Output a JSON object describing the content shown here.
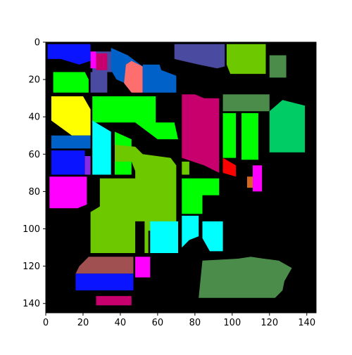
{
  "chart_data": {
    "type": "heatmap",
    "title": "",
    "xlabel": "",
    "ylabel": "",
    "xlim": [
      0,
      145
    ],
    "ylim": [
      145,
      0
    ],
    "x_ticks": [
      0,
      20,
      40,
      60,
      80,
      100,
      120,
      140
    ],
    "y_ticks": [
      0,
      20,
      40,
      60,
      80,
      100,
      120,
      140
    ],
    "background_color": "#000000",
    "grid": false,
    "legend": "none",
    "colors": {
      "blue": "#0a14ff",
      "magenta": "#ff00ff",
      "crimson": "#c8006e",
      "slate": "#4a4aa0",
      "salmon": "#ff6e6e",
      "steel_blue": "#0062c8",
      "olive_green": "#6ec800",
      "green": "#00ff00",
      "muted_green": "#4b8c4b",
      "mint": "#00cc66",
      "yellow": "#ffff00",
      "cyan": "#00ffff",
      "red": "#ff0000",
      "brown": "#a05050",
      "purple": "#8a2be2",
      "orange": "#d2691e"
    },
    "regions": [
      {
        "class": "blue",
        "polygon": [
          [
            1,
            1
          ],
          [
            24,
            1
          ],
          [
            24,
            10
          ],
          [
            18,
            12
          ],
          [
            8,
            9
          ],
          [
            1,
            9
          ]
        ]
      },
      {
        "class": "slate",
        "polygon": [
          [
            25,
            5
          ],
          [
            38,
            5
          ],
          [
            38,
            16
          ],
          [
            25,
            16
          ]
        ]
      },
      {
        "class": "magenta",
        "polygon": [
          [
            24,
            5
          ],
          [
            27,
            5
          ],
          [
            27,
            14
          ],
          [
            24,
            14
          ]
        ]
      },
      {
        "class": "crimson",
        "polygon": [
          [
            27,
            6
          ],
          [
            33,
            6
          ],
          [
            33,
            15
          ],
          [
            27,
            15
          ]
        ]
      },
      {
        "class": "slate",
        "polygon": [
          [
            24,
            16
          ],
          [
            33,
            16
          ],
          [
            33,
            27
          ],
          [
            24,
            27
          ]
        ]
      },
      {
        "class": "steel_blue",
        "polygon": [
          [
            35,
            3
          ],
          [
            44,
            7
          ],
          [
            52,
            13
          ],
          [
            52,
            24
          ],
          [
            45,
            23
          ],
          [
            38,
            20
          ],
          [
            35,
            15
          ]
        ]
      },
      {
        "class": "salmon",
        "polygon": [
          [
            43,
            12
          ],
          [
            46,
            10
          ],
          [
            52,
            13
          ],
          [
            52,
            27
          ],
          [
            46,
            27
          ],
          [
            42,
            22
          ]
        ]
      },
      {
        "class": "steel_blue",
        "polygon": [
          [
            52,
            12
          ],
          [
            61,
            12
          ],
          [
            62,
            15
          ],
          [
            70,
            18
          ],
          [
            70,
            27
          ],
          [
            52,
            27
          ]
        ]
      },
      {
        "class": "slate",
        "polygon": [
          [
            69,
            1
          ],
          [
            96,
            1
          ],
          [
            96,
            13
          ],
          [
            92,
            14
          ],
          [
            82,
            12
          ],
          [
            69,
            9
          ]
        ]
      },
      {
        "class": "olive_green",
        "polygon": [
          [
            97,
            1
          ],
          [
            118,
            1
          ],
          [
            118,
            17
          ],
          [
            99,
            17
          ],
          [
            97,
            12
          ]
        ]
      },
      {
        "class": "muted_green",
        "polygon": [
          [
            120,
            7
          ],
          [
            129,
            7
          ],
          [
            129,
            19
          ],
          [
            120,
            19
          ]
        ]
      },
      {
        "class": "green",
        "polygon": [
          [
            4,
            16
          ],
          [
            21,
            16
          ],
          [
            23,
            20
          ],
          [
            23,
            27
          ],
          [
            4,
            27
          ]
        ]
      },
      {
        "class": "yellow",
        "polygon": [
          [
            3,
            29
          ],
          [
            20,
            29
          ],
          [
            24,
            36
          ],
          [
            24,
            50
          ],
          [
            14,
            50
          ],
          [
            3,
            42
          ]
        ]
      },
      {
        "class": "steel_blue",
        "polygon": [
          [
            3,
            50
          ],
          [
            24,
            50
          ],
          [
            24,
            57
          ],
          [
            3,
            57
          ]
        ]
      },
      {
        "class": "blue",
        "polygon": [
          [
            3,
            58
          ],
          [
            21,
            58
          ],
          [
            21,
            71
          ],
          [
            3,
            71
          ]
        ]
      },
      {
        "class": "purple",
        "polygon": [
          [
            21,
            61
          ],
          [
            24,
            61
          ],
          [
            24,
            71
          ],
          [
            21,
            71
          ]
        ]
      },
      {
        "class": "magenta",
        "polygon": [
          [
            2,
            72
          ],
          [
            22,
            72
          ],
          [
            22,
            87
          ],
          [
            17,
            89
          ],
          [
            2,
            89
          ]
        ]
      },
      {
        "class": "green",
        "polygon": [
          [
            25,
            29
          ],
          [
            59,
            29
          ],
          [
            59,
            43
          ],
          [
            69,
            43
          ],
          [
            71,
            52
          ],
          [
            60,
            52
          ],
          [
            48,
            43
          ],
          [
            25,
            43
          ]
        ]
      },
      {
        "class": "cyan",
        "polygon": [
          [
            25,
            42
          ],
          [
            35,
            48
          ],
          [
            35,
            71
          ],
          [
            25,
            71
          ]
        ]
      },
      {
        "class": "green",
        "polygon": [
          [
            37,
            48
          ],
          [
            46,
            52
          ],
          [
            46,
            71
          ],
          [
            37,
            71
          ]
        ]
      },
      {
        "class": "olive_green",
        "polygon": [
          [
            37,
            55
          ],
          [
            48,
            56
          ],
          [
            52,
            60
          ],
          [
            67,
            62
          ],
          [
            70,
            66
          ],
          [
            70,
            97
          ],
          [
            65,
            101
          ],
          [
            55,
            101
          ],
          [
            55,
            113
          ],
          [
            53,
            113
          ],
          [
            53,
            96
          ],
          [
            48,
            96
          ],
          [
            48,
            113
          ],
          [
            24,
            113
          ],
          [
            24,
            91
          ],
          [
            29,
            88
          ],
          [
            29,
            73
          ],
          [
            48,
            73
          ],
          [
            48,
            69
          ],
          [
            46,
            64
          ],
          [
            37,
            64
          ]
        ]
      },
      {
        "class": "crimson",
        "polygon": [
          [
            73,
            28
          ],
          [
            80,
            28
          ],
          [
            85,
            30
          ],
          [
            93,
            30
          ],
          [
            93,
            70
          ],
          [
            85,
            66
          ],
          [
            73,
            62
          ]
        ]
      },
      {
        "class": "muted_green",
        "polygon": [
          [
            95,
            28
          ],
          [
            120,
            28
          ],
          [
            120,
            37
          ],
          [
            95,
            37
          ]
        ]
      },
      {
        "class": "green",
        "polygon": [
          [
            95,
            38
          ],
          [
            102,
            38
          ],
          [
            102,
            62
          ],
          [
            95,
            62
          ]
        ]
      },
      {
        "class": "green",
        "polygon": [
          [
            105,
            38
          ],
          [
            114,
            38
          ],
          [
            114,
            63
          ],
          [
            105,
            63
          ]
        ]
      },
      {
        "class": "mint",
        "polygon": [
          [
            120,
            37
          ],
          [
            127,
            31
          ],
          [
            139,
            34
          ],
          [
            139,
            59
          ],
          [
            120,
            59
          ]
        ]
      },
      {
        "class": "red",
        "polygon": [
          [
            95,
            62
          ],
          [
            102,
            66
          ],
          [
            102,
            72
          ],
          [
            95,
            70
          ]
        ]
      },
      {
        "class": "orange",
        "polygon": [
          [
            108,
            72
          ],
          [
            112,
            72
          ],
          [
            112,
            78
          ],
          [
            108,
            78
          ]
        ]
      },
      {
        "class": "magenta",
        "polygon": [
          [
            111,
            66
          ],
          [
            116,
            66
          ],
          [
            116,
            80
          ],
          [
            111,
            80
          ]
        ]
      },
      {
        "class": "green",
        "polygon": [
          [
            73,
            73
          ],
          [
            93,
            73
          ],
          [
            93,
            82
          ],
          [
            84,
            82
          ],
          [
            84,
            92
          ],
          [
            73,
            92
          ]
        ]
      },
      {
        "class": "olive_green",
        "polygon": [
          [
            73,
            64
          ],
          [
            77,
            64
          ],
          [
            77,
            71
          ],
          [
            73,
            71
          ]
        ]
      },
      {
        "class": "cyan",
        "polygon": [
          [
            56,
            96
          ],
          [
            71,
            96
          ],
          [
            71,
            113
          ],
          [
            56,
            113
          ]
        ]
      },
      {
        "class": "cyan",
        "polygon": [
          [
            73,
            93
          ],
          [
            82,
            93
          ],
          [
            82,
            104
          ],
          [
            77,
            106
          ],
          [
            73,
            110
          ]
        ]
      },
      {
        "class": "cyan",
        "polygon": [
          [
            84,
            96
          ],
          [
            95,
            96
          ],
          [
            95,
            112
          ],
          [
            88,
            112
          ],
          [
            84,
            105
          ]
        ]
      },
      {
        "class": "magenta",
        "polygon": [
          [
            48,
            115
          ],
          [
            56,
            115
          ],
          [
            56,
            126
          ],
          [
            48,
            126
          ]
        ]
      },
      {
        "class": "brown",
        "polygon": [
          [
            18,
            120
          ],
          [
            23,
            115
          ],
          [
            47,
            115
          ],
          [
            47,
            124
          ],
          [
            16,
            124
          ]
        ]
      },
      {
        "class": "blue",
        "polygon": [
          [
            16,
            124
          ],
          [
            47,
            124
          ],
          [
            47,
            133
          ],
          [
            16,
            133
          ]
        ]
      },
      {
        "class": "crimson",
        "polygon": [
          [
            27,
            136
          ],
          [
            46,
            136
          ],
          [
            46,
            141
          ],
          [
            27,
            141
          ]
        ]
      },
      {
        "class": "muted_green",
        "polygon": [
          [
            84,
            117
          ],
          [
            103,
            116
          ],
          [
            110,
            115
          ],
          [
            117,
            116
          ],
          [
            125,
            117
          ],
          [
            132,
            121
          ],
          [
            128,
            128
          ],
          [
            127,
            133
          ],
          [
            123,
            137
          ],
          [
            82,
            137
          ]
        ]
      }
    ]
  }
}
